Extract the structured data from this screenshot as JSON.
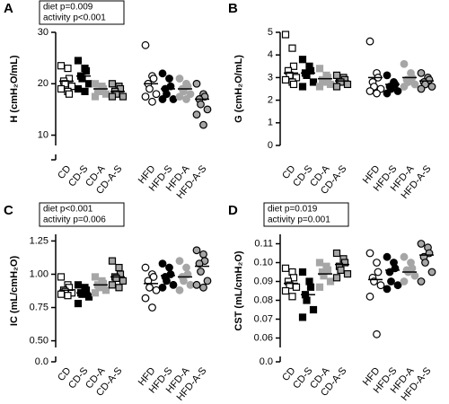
{
  "chart_data": [
    {
      "type": "strip",
      "panel": "A",
      "ylabel": "H (cmH₂O/mL)",
      "annotations": [
        "diet p=0.009",
        "activity p<0.001"
      ],
      "ylim": [
        8,
        30
      ],
      "yticks": [
        10,
        20,
        30
      ],
      "ybreak": {
        "value": 0
      },
      "groups": [
        {
          "name": "CD",
          "marker": "square",
          "fill": "#ffffff",
          "stroke": "#000000",
          "values": [
            23.5,
            23,
            21,
            20.5,
            20,
            19.5,
            19,
            18.5,
            18
          ],
          "mean": 20.5
        },
        {
          "name": "CD-S",
          "marker": "square",
          "fill": "#000000",
          "stroke": "#000000",
          "values": [
            24.5,
            23,
            22.5,
            21.5,
            21,
            20,
            19,
            18.5
          ],
          "mean": 21.5
        },
        {
          "name": "CD-A",
          "marker": "square",
          "fill": "#a6a6a6",
          "stroke": "#a6a6a6",
          "values": [
            20,
            19.5,
            19,
            18.5,
            18.5,
            18,
            17.5
          ],
          "mean": 19
        },
        {
          "name": "CD-A-S",
          "marker": "square",
          "fill": "#a6a6a6",
          "stroke": "#000000",
          "values": [
            20,
            19.5,
            19,
            18.5,
            18,
            17.5,
            17.5
          ],
          "mean": 18.5
        },
        {
          "name": "HFD",
          "marker": "circle",
          "fill": "#ffffff",
          "stroke": "#000000",
          "values": [
            27.5,
            21.5,
            21,
            20,
            19,
            18,
            17.5,
            16.5
          ],
          "mean": 20
        },
        {
          "name": "HFD-S",
          "marker": "circle",
          "fill": "#000000",
          "stroke": "#000000",
          "values": [
            22,
            21,
            19.5,
            19,
            18,
            17,
            17
          ],
          "mean": 19
        },
        {
          "name": "HFD-A",
          "marker": "circle",
          "fill": "#a6a6a6",
          "stroke": "#a6a6a6",
          "values": [
            21,
            20,
            19.5,
            19,
            18.5,
            18,
            17.5,
            17
          ],
          "mean": 19
        },
        {
          "name": "HFD-A-S",
          "marker": "circle",
          "fill": "#a6a6a6",
          "stroke": "#000000",
          "values": [
            20,
            18,
            17.5,
            17,
            16,
            15,
            14,
            12
          ],
          "mean": 17
        }
      ]
    },
    {
      "type": "strip",
      "panel": "B",
      "ylabel": "G (cmH₂O/mL)",
      "annotations": [],
      "ylim": [
        0,
        5
      ],
      "yticks": [
        0,
        1,
        2,
        3,
        4,
        5
      ],
      "groups": [
        {
          "name": "CD",
          "marker": "square",
          "fill": "#ffffff",
          "stroke": "#000000",
          "values": [
            4.9,
            4.3,
            3.5,
            3.3,
            3.1,
            3.0,
            2.9,
            2.8,
            2.7
          ],
          "mean": 3.2
        },
        {
          "name": "CD-S",
          "marker": "square",
          "fill": "#000000",
          "stroke": "#000000",
          "values": [
            3.8,
            3.5,
            3.3,
            3.2,
            3.1,
            2.8,
            2.6
          ],
          "mean": 3.2
        },
        {
          "name": "CD-A",
          "marker": "square",
          "fill": "#a6a6a6",
          "stroke": "#a6a6a6",
          "values": [
            3.4,
            3.1,
            3.0,
            2.9,
            2.8,
            2.7,
            2.6
          ],
          "mean": 2.95
        },
        {
          "name": "CD-A-S",
          "marker": "square",
          "fill": "#a6a6a6",
          "stroke": "#000000",
          "values": [
            3.1,
            3.0,
            2.9,
            2.8,
            2.8,
            2.7,
            2.6
          ],
          "mean": 2.85
        },
        {
          "name": "HFD",
          "marker": "circle",
          "fill": "#ffffff",
          "stroke": "#000000",
          "values": [
            4.6,
            3.2,
            3.0,
            2.8,
            2.6,
            2.5,
            2.4,
            2.3
          ],
          "mean": 3.0
        },
        {
          "name": "HFD-S",
          "marker": "circle",
          "fill": "#000000",
          "stroke": "#000000",
          "values": [
            3.1,
            2.8,
            2.7,
            2.6,
            2.5,
            2.4,
            2.3
          ],
          "mean": 2.7
        },
        {
          "name": "HFD-A",
          "marker": "circle",
          "fill": "#a6a6a6",
          "stroke": "#a6a6a6",
          "values": [
            3.6,
            3.2,
            3.0,
            2.9,
            2.8,
            2.7,
            2.6
          ],
          "mean": 3.0
        },
        {
          "name": "HFD-A-S",
          "marker": "circle",
          "fill": "#a6a6a6",
          "stroke": "#000000",
          "values": [
            3.2,
            3.0,
            2.9,
            2.8,
            2.7,
            2.6,
            2.5
          ],
          "mean": 2.85
        }
      ]
    },
    {
      "type": "strip",
      "panel": "C",
      "ylabel": "IC (mL/cmH₂O)",
      "annotations": [
        "diet p<0.001",
        "activity p=0.006"
      ],
      "ylim": [
        0.45,
        1.3
      ],
      "yticks": [
        {
          "value": 0.5,
          "label": "0.50"
        },
        0.75,
        {
          "value": 1,
          "label": "1.00"
        },
        1.25
      ],
      "ybreak": {
        "value": 0,
        "label": "0.0"
      },
      "groups": [
        {
          "name": "CD",
          "marker": "square",
          "fill": "#ffffff",
          "stroke": "#000000",
          "values": [
            0.98,
            0.92,
            0.9,
            0.88,
            0.87,
            0.86,
            0.85,
            0.84
          ],
          "mean": 0.88
        },
        {
          "name": "CD-S",
          "marker": "square",
          "fill": "#000000",
          "stroke": "#000000",
          "values": [
            0.92,
            0.9,
            0.88,
            0.86,
            0.85,
            0.83,
            0.78
          ],
          "mean": 0.86
        },
        {
          "name": "CD-A",
          "marker": "square",
          "fill": "#a6a6a6",
          "stroke": "#a6a6a6",
          "values": [
            0.98,
            0.95,
            0.93,
            0.92,
            0.9,
            0.88,
            0.86
          ],
          "mean": 0.92
        },
        {
          "name": "CD-A-S",
          "marker": "square",
          "fill": "#a6a6a6",
          "stroke": "#000000",
          "values": [
            1.1,
            1.05,
            1.0,
            0.98,
            0.97,
            0.95,
            0.92,
            0.9
          ],
          "mean": 0.98
        },
        {
          "name": "HFD",
          "marker": "circle",
          "fill": "#ffffff",
          "stroke": "#000000",
          "values": [
            1.05,
            1.0,
            0.98,
            0.95,
            0.9,
            0.88,
            0.82,
            0.75
          ],
          "mean": 0.93
        },
        {
          "name": "HFD-S",
          "marker": "circle",
          "fill": "#000000",
          "stroke": "#000000",
          "values": [
            1.08,
            1.05,
            1.0,
            0.98,
            0.95,
            0.92,
            0.9
          ],
          "mean": 0.99
        },
        {
          "name": "HFD-A",
          "marker": "circle",
          "fill": "#a6a6a6",
          "stroke": "#a6a6a6",
          "values": [
            1.1,
            1.05,
            1.0,
            0.98,
            0.95,
            0.92,
            0.88
          ],
          "mean": 0.98
        },
        {
          "name": "HFD-A-S",
          "marker": "circle",
          "fill": "#a6a6a6",
          "stroke": "#000000",
          "values": [
            1.18,
            1.15,
            1.1,
            1.08,
            1.02,
            0.95,
            0.92,
            0.9
          ],
          "mean": 1.06
        }
      ]
    },
    {
      "type": "strip",
      "panel": "D",
      "ylabel": "CST (mL/cmH₂O)",
      "annotations": [
        "diet p=0.019",
        "activity p=0.001"
      ],
      "ylim": [
        0.055,
        0.115
      ],
      "yticks": [
        0.06,
        0.07,
        0.08,
        0.09,
        {
          "value": 0.1,
          "label": "0.10"
        },
        0.11
      ],
      "ybreak": {
        "value": 0,
        "label": "0.0"
      },
      "groups": [
        {
          "name": "CD",
          "marker": "square",
          "fill": "#ffffff",
          "stroke": "#000000",
          "values": [
            0.097,
            0.095,
            0.092,
            0.09,
            0.088,
            0.087,
            0.085,
            0.082
          ],
          "mean": 0.089
        },
        {
          "name": "CD-S",
          "marker": "square",
          "fill": "#000000",
          "stroke": "#000000",
          "values": [
            0.095,
            0.09,
            0.087,
            0.083,
            0.08,
            0.075,
            0.071
          ],
          "mean": 0.083
        },
        {
          "name": "CD-A",
          "marker": "square",
          "fill": "#a6a6a6",
          "stroke": "#a6a6a6",
          "values": [
            0.1,
            0.098,
            0.096,
            0.095,
            0.093,
            0.09,
            0.087
          ],
          "mean": 0.094
        },
        {
          "name": "CD-A-S",
          "marker": "square",
          "fill": "#a6a6a6",
          "stroke": "#000000",
          "values": [
            0.105,
            0.102,
            0.1,
            0.098,
            0.096,
            0.094,
            0.092
          ],
          "mean": 0.099
        },
        {
          "name": "HFD",
          "marker": "circle",
          "fill": "#ffffff",
          "stroke": "#000000",
          "values": [
            0.105,
            0.1,
            0.095,
            0.092,
            0.09,
            0.088,
            0.082,
            0.062
          ],
          "mean": 0.091
        },
        {
          "name": "HFD-S",
          "marker": "circle",
          "fill": "#000000",
          "stroke": "#000000",
          "values": [
            0.103,
            0.1,
            0.097,
            0.095,
            0.09,
            0.088,
            0.086
          ],
          "mean": 0.096
        },
        {
          "name": "HFD-A",
          "marker": "circle",
          "fill": "#a6a6a6",
          "stroke": "#a6a6a6",
          "values": [
            0.103,
            0.1,
            0.097,
            0.096,
            0.095,
            0.093,
            0.09
          ],
          "mean": 0.095
        },
        {
          "name": "HFD-A-S",
          "marker": "circle",
          "fill": "#a6a6a6",
          "stroke": "#000000",
          "values": [
            0.11,
            0.108,
            0.105,
            0.103,
            0.1,
            0.095,
            0.09
          ],
          "mean": 0.104
        }
      ]
    }
  ]
}
